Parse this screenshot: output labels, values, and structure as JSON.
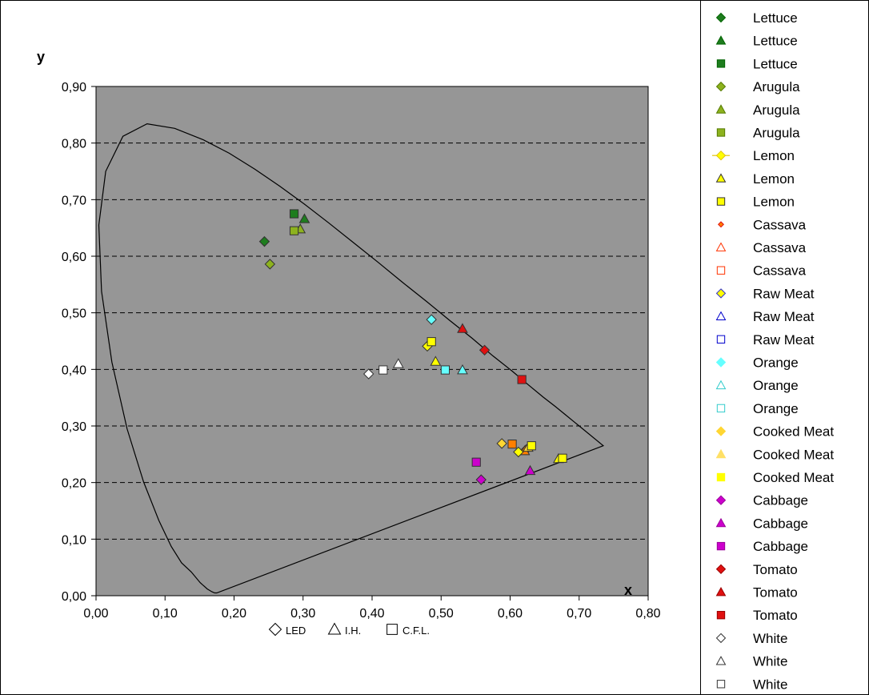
{
  "chart_data": {
    "type": "scatter",
    "xlabel": "x",
    "ylabel": "y",
    "xlim": [
      0,
      0.8
    ],
    "ylim": [
      0,
      0.9
    ],
    "x_ticks": [
      "0,00",
      "0,10",
      "0,20",
      "0,30",
      "0,40",
      "0,50",
      "0,60",
      "0,70",
      "0,80"
    ],
    "y_ticks": [
      "0,00",
      "0,10",
      "0,20",
      "0,30",
      "0,40",
      "0,50",
      "0,60",
      "0,70",
      "0,80",
      "0,90"
    ],
    "grid": "horizontal dashed",
    "plot_background": "#969696",
    "legend_position": "right",
    "bottom_legend": [
      {
        "marker": "diamond",
        "label": "LED"
      },
      {
        "marker": "triangle",
        "label": "I.H."
      },
      {
        "marker": "square",
        "label": "C.F.L."
      }
    ],
    "locus": [
      [
        0.175,
        0.005
      ],
      [
        0.172,
        0.005
      ],
      [
        0.168,
        0.007
      ],
      [
        0.161,
        0.012
      ],
      [
        0.151,
        0.023
      ],
      [
        0.138,
        0.042
      ],
      [
        0.124,
        0.058
      ],
      [
        0.109,
        0.087
      ],
      [
        0.091,
        0.133
      ],
      [
        0.069,
        0.201
      ],
      [
        0.045,
        0.295
      ],
      [
        0.023,
        0.413
      ],
      [
        0.008,
        0.538
      ],
      [
        0.004,
        0.655
      ],
      [
        0.014,
        0.75
      ],
      [
        0.039,
        0.812
      ],
      [
        0.074,
        0.834
      ],
      [
        0.114,
        0.826
      ],
      [
        0.155,
        0.806
      ],
      [
        0.193,
        0.782
      ],
      [
        0.23,
        0.754
      ],
      [
        0.266,
        0.724
      ],
      [
        0.302,
        0.692
      ],
      [
        0.337,
        0.659
      ],
      [
        0.373,
        0.624
      ],
      [
        0.409,
        0.589
      ],
      [
        0.444,
        0.554
      ],
      [
        0.479,
        0.52
      ],
      [
        0.512,
        0.487
      ],
      [
        0.545,
        0.455
      ],
      [
        0.575,
        0.424
      ],
      [
        0.603,
        0.397
      ],
      [
        0.627,
        0.372
      ],
      [
        0.648,
        0.351
      ],
      [
        0.666,
        0.334
      ],
      [
        0.68,
        0.32
      ],
      [
        0.692,
        0.308
      ],
      [
        0.702,
        0.298
      ],
      [
        0.735,
        0.265
      ],
      [
        0.175,
        0.005
      ]
    ],
    "series": [
      {
        "name": "Lettuce",
        "marker": "diamond",
        "color": "#1e7d1e",
        "x": [
          0.244
        ],
        "y": [
          0.626
        ]
      },
      {
        "name": "Lettuce",
        "marker": "triangle",
        "color": "#1e7d1e",
        "x": [
          0.302
        ],
        "y": [
          0.666
        ]
      },
      {
        "name": "Lettuce",
        "marker": "square",
        "color": "#1e7d1e",
        "x": [
          0.287
        ],
        "y": [
          0.675
        ]
      },
      {
        "name": "Arugula",
        "marker": "diamond",
        "color": "#8db21e",
        "x": [
          0.252
        ],
        "y": [
          0.586
        ]
      },
      {
        "name": "Arugula",
        "marker": "triangle",
        "color": "#8db21e",
        "x": [
          0.296
        ],
        "y": [
          0.648
        ]
      },
      {
        "name": "Arugula",
        "marker": "square",
        "color": "#8db21e",
        "x": [
          0.287
        ],
        "y": [
          0.645
        ]
      },
      {
        "name": "Lemon",
        "marker": "diamond",
        "color": "#ffff00",
        "x": [
          0.48
        ],
        "y": [
          0.441
        ]
      },
      {
        "name": "Lemon",
        "marker": "triangle",
        "color": "#ffff00",
        "x": [
          0.492
        ],
        "y": [
          0.414
        ]
      },
      {
        "name": "Lemon",
        "marker": "square",
        "color": "#ffff00",
        "x": [
          0.486
        ],
        "y": [
          0.449
        ]
      },
      {
        "name": "Cassava",
        "marker": "diamond",
        "color": "#ff7f00",
        "x": [
          0.623
        ],
        "y": [
          0.258
        ]
      },
      {
        "name": "Cassava",
        "marker": "triangle",
        "color": "#ff7f00",
        "x": [
          0.621
        ],
        "y": [
          0.256
        ]
      },
      {
        "name": "Cassava",
        "marker": "square",
        "color": "#ff7f00",
        "x": [
          0.603
        ],
        "y": [
          0.268
        ]
      },
      {
        "name": "Raw Meat",
        "marker": "diamond",
        "color": "#ffff00",
        "x": [
          0.612
        ],
        "y": [
          0.254
        ]
      },
      {
        "name": "Raw Meat",
        "marker": "triangle",
        "color": "#ffff00",
        "x": [
          0.67
        ],
        "y": [
          0.242
        ]
      },
      {
        "name": "Raw Meat",
        "marker": "square",
        "color": "#ffff00",
        "x": [
          0.676
        ],
        "y": [
          0.243
        ]
      },
      {
        "name": "Orange",
        "marker": "diamond",
        "color": "#66ffff",
        "x": [
          0.486
        ],
        "y": [
          0.488
        ]
      },
      {
        "name": "Orange",
        "marker": "triangle",
        "color": "#66ffff",
        "x": [
          0.531
        ],
        "y": [
          0.399
        ]
      },
      {
        "name": "Orange",
        "marker": "square",
        "color": "#66ffff",
        "x": [
          0.506
        ],
        "y": [
          0.399
        ]
      },
      {
        "name": "Cooked Meat",
        "marker": "diamond",
        "color": "#ffd633",
        "x": [
          0.588
        ],
        "y": [
          0.269
        ]
      },
      {
        "name": "Cooked Meat",
        "marker": "triangle",
        "color": "#ffd633",
        "x": [
          0.626
        ],
        "y": [
          0.262
        ]
      },
      {
        "name": "Cooked Meat",
        "marker": "square",
        "color": "#ffff00",
        "x": [
          0.631
        ],
        "y": [
          0.265
        ]
      },
      {
        "name": "Cabbage",
        "marker": "diamond",
        "color": "#cc00cc",
        "x": [
          0.558
        ],
        "y": [
          0.205
        ]
      },
      {
        "name": "Cabbage",
        "marker": "triangle",
        "color": "#cc00cc",
        "x": [
          0.629
        ],
        "y": [
          0.221
        ]
      },
      {
        "name": "Cabbage",
        "marker": "square",
        "color": "#cc00cc",
        "x": [
          0.551
        ],
        "y": [
          0.236
        ]
      },
      {
        "name": "Tomato",
        "marker": "diamond",
        "color": "#e01010",
        "x": [
          0.563
        ],
        "y": [
          0.434
        ]
      },
      {
        "name": "Tomato",
        "marker": "triangle",
        "color": "#e01010",
        "x": [
          0.531
        ],
        "y": [
          0.472
        ]
      },
      {
        "name": "Tomato",
        "marker": "square",
        "color": "#e01010",
        "x": [
          0.617
        ],
        "y": [
          0.382
        ]
      },
      {
        "name": "White",
        "marker": "diamond",
        "color": "#ffffff",
        "x": [
          0.395
        ],
        "y": [
          0.392
        ]
      },
      {
        "name": "White",
        "marker": "triangle",
        "color": "#ffffff",
        "x": [
          0.438
        ],
        "y": [
          0.41
        ]
      },
      {
        "name": "White",
        "marker": "square",
        "color": "#ffffff",
        "x": [
          0.416
        ],
        "y": [
          0.399
        ]
      }
    ],
    "legend": [
      {
        "label": "Lettuce",
        "marker": "diamond",
        "fill": "#1e7d1e",
        "stroke": "#006400"
      },
      {
        "label": "Lettuce",
        "marker": "triangle",
        "fill": "#1e7d1e",
        "stroke": "#006400"
      },
      {
        "label": "Lettuce",
        "marker": "square",
        "fill": "#1e7d1e",
        "stroke": "#006400"
      },
      {
        "label": "Arugula",
        "marker": "diamond",
        "fill": "#8db21e",
        "stroke": "#557a00"
      },
      {
        "label": "Arugula",
        "marker": "triangle",
        "fill": "#8db21e",
        "stroke": "#557a00"
      },
      {
        "label": "Arugula",
        "marker": "square",
        "fill": "#8db21e",
        "stroke": "#557a00"
      },
      {
        "label": "Lemon",
        "marker": "line-diamond",
        "fill": "#ffff00",
        "stroke": "#e0c000"
      },
      {
        "label": "Lemon",
        "marker": "triangle",
        "fill": "#ffff00",
        "stroke": "#333333"
      },
      {
        "label": "Lemon",
        "marker": "square",
        "fill": "#ffff00",
        "stroke": "#333333"
      },
      {
        "label": "Cassava",
        "marker": "small-diamond",
        "fill": "#ff7f00",
        "stroke": "#e01010"
      },
      {
        "label": "Cassava",
        "marker": "triangle",
        "fill": "#ffffff",
        "stroke": "#ff3300"
      },
      {
        "label": "Cassava",
        "marker": "square",
        "fill": "#ffffff",
        "stroke": "#ff3300"
      },
      {
        "label": "Raw Meat",
        "marker": "diamond",
        "fill": "#ffff00",
        "stroke": "#3333cc"
      },
      {
        "label": "Raw Meat",
        "marker": "triangle",
        "fill": "#ffffff",
        "stroke": "#0000cc"
      },
      {
        "label": "Raw Meat",
        "marker": "square",
        "fill": "#ffffff",
        "stroke": "#0000cc"
      },
      {
        "label": "Orange",
        "marker": "diamond",
        "fill": "#66ffff",
        "stroke": "#66ffff"
      },
      {
        "label": "Orange",
        "marker": "triangle",
        "fill": "#ffffff",
        "stroke": "#33cccc"
      },
      {
        "label": "Orange",
        "marker": "square",
        "fill": "#ffffff",
        "stroke": "#33cccc"
      },
      {
        "label": "Cooked Meat",
        "marker": "diamond",
        "fill": "#ffd633",
        "stroke": "#ffd633"
      },
      {
        "label": "Cooked Meat",
        "marker": "triangle",
        "fill": "#ffe066",
        "stroke": "#ffe066"
      },
      {
        "label": "Cooked Meat",
        "marker": "square",
        "fill": "#ffff00",
        "stroke": "#ffff00"
      },
      {
        "label": "Cabbage",
        "marker": "diamond",
        "fill": "#cc00cc",
        "stroke": "#990099"
      },
      {
        "label": "Cabbage",
        "marker": "triangle",
        "fill": "#cc00cc",
        "stroke": "#990099"
      },
      {
        "label": "Cabbage",
        "marker": "square",
        "fill": "#cc00cc",
        "stroke": "#990099"
      },
      {
        "label": "Tomato",
        "marker": "diamond",
        "fill": "#e01010",
        "stroke": "#990000"
      },
      {
        "label": "Tomato",
        "marker": "triangle",
        "fill": "#e01010",
        "stroke": "#990000"
      },
      {
        "label": "Tomato",
        "marker": "square",
        "fill": "#e01010",
        "stroke": "#990000"
      },
      {
        "label": "White",
        "marker": "diamond",
        "fill": "#ffffff",
        "stroke": "#333333"
      },
      {
        "label": "White",
        "marker": "triangle",
        "fill": "#ffffff",
        "stroke": "#333333"
      },
      {
        "label": "White",
        "marker": "square",
        "fill": "#ffffff",
        "stroke": "#333333"
      }
    ]
  }
}
